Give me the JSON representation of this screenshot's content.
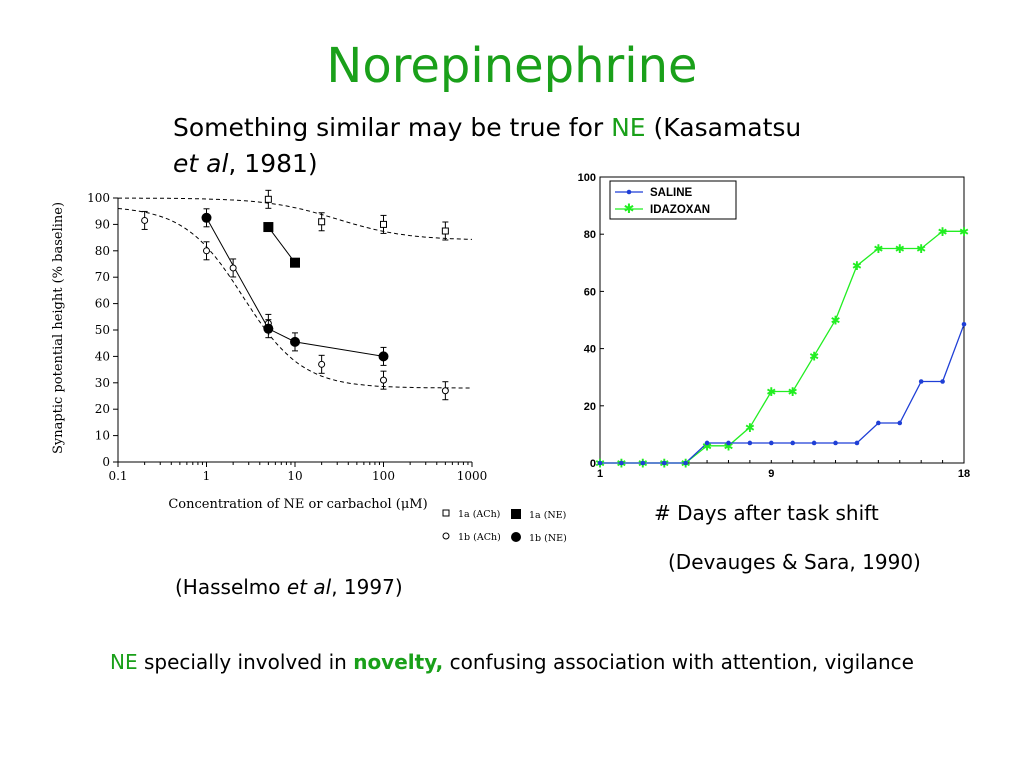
{
  "slide": {
    "title": "Norepinephrine",
    "subtitle": {
      "part1": "Something similar may be true for ",
      "ne": "NE",
      "part2": " (Kasamatsu ",
      "etal": "et al",
      "part3": ", 1981)"
    },
    "caption_left": {
      "part1": "(Hasselmo ",
      "etal": "et al",
      "part2": ", 1997)"
    },
    "caption_right_axis": "# Days after task shift",
    "caption_right_cite": "(Devauges & Sara, 1990)",
    "bottom": {
      "ne": "NE",
      "part1": " specially involved in ",
      "novelty": "novelty,",
      "part2": " confusing association with attention, vigilance"
    }
  },
  "colors": {
    "title_green": "#1aa01a",
    "saline": "#1f3fd6",
    "idazoxan": "#22ee22"
  },
  "chart_data": [
    {
      "type": "scatter",
      "xlabel": "Concentration of NE or carbachol (μM)",
      "ylabel": "Synaptic potential height (% baseline)",
      "xscale": "log",
      "xlim": [
        0.1,
        1000
      ],
      "ylim": [
        0,
        100
      ],
      "xticks": [
        "0.1",
        "1",
        "10",
        "100",
        "1000"
      ],
      "yticks": [
        "0",
        "10",
        "20",
        "30",
        "40",
        "50",
        "60",
        "70",
        "80",
        "90",
        "100"
      ],
      "series": [
        {
          "name": "1a (ACh)",
          "marker": "open-square",
          "line": "dashed",
          "x": [
            5,
            20,
            100,
            500
          ],
          "y": [
            99.5,
            91,
            90,
            87.5
          ]
        },
        {
          "name": "1a (NE)",
          "marker": "filled-square",
          "line": "solid",
          "x": [
            5,
            10
          ],
          "y": [
            89,
            75.5
          ]
        },
        {
          "name": "1b (ACh)",
          "marker": "open-circle",
          "line": "dashed",
          "x": [
            0.2,
            1,
            2,
            5,
            20,
            100,
            500
          ],
          "y": [
            91.5,
            80,
            73.5,
            52.5,
            37,
            31,
            27
          ]
        },
        {
          "name": "1b (NE)",
          "marker": "filled-circle",
          "line": "solid",
          "x": [
            1,
            5,
            10,
            100
          ],
          "y": [
            92.5,
            50.5,
            45.5,
            40
          ]
        }
      ],
      "legend": "bottom-right"
    },
    {
      "type": "line",
      "x": [
        1,
        2,
        3,
        4,
        5,
        6,
        7,
        8,
        9,
        10,
        11,
        12,
        13,
        14,
        15,
        16,
        17,
        18
      ],
      "xticks": [
        "1",
        "9",
        "18"
      ],
      "yticks": [
        "0",
        "20",
        "40",
        "60",
        "80",
        "100"
      ],
      "ylim": [
        0,
        100
      ],
      "series": [
        {
          "name": "SALINE",
          "color": "#1f3fd6",
          "values": [
            0,
            0,
            0,
            0,
            0,
            7,
            7,
            7,
            7,
            7,
            7,
            7,
            7,
            14,
            14,
            28.5,
            28.5,
            48.5
          ]
        },
        {
          "name": "IDAZOXAN",
          "color": "#22ee22",
          "values": [
            0,
            0,
            0,
            0,
            0,
            6,
            6,
            12.5,
            25,
            25,
            37.5,
            50,
            69,
            75,
            75,
            75,
            81,
            81
          ]
        }
      ],
      "legend": "top-left"
    }
  ]
}
